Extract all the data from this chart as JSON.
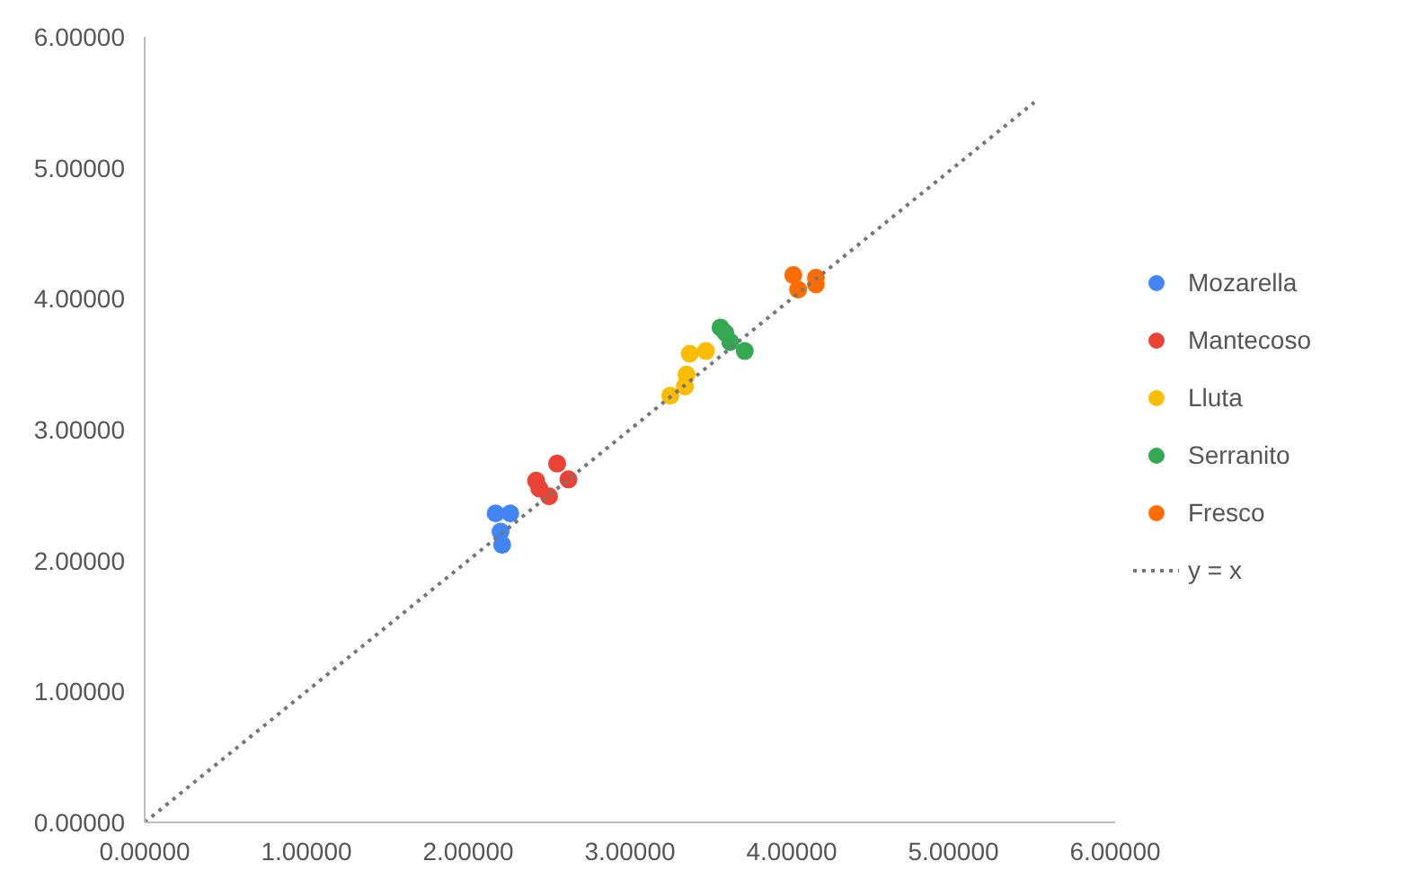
{
  "chart_data": {
    "type": "scatter",
    "marker": "circle",
    "grid": false,
    "legend": "right",
    "xlim": [
      0,
      6
    ],
    "ylim": [
      0,
      6
    ],
    "xticks": [
      {
        "value": 0,
        "label": "0.00000"
      },
      {
        "value": 1,
        "label": "1.00000"
      },
      {
        "value": 2,
        "label": "2.00000"
      },
      {
        "value": 3,
        "label": "3.00000"
      },
      {
        "value": 4,
        "label": "4.00000"
      },
      {
        "value": 5,
        "label": "5.00000"
      },
      {
        "value": 6,
        "label": "6.00000"
      }
    ],
    "yticks": [
      {
        "value": 0,
        "label": "0.00000"
      },
      {
        "value": 1,
        "label": "1.00000"
      },
      {
        "value": 2,
        "label": "2.00000"
      },
      {
        "value": 3,
        "label": "3.00000"
      },
      {
        "value": 4,
        "label": "4.00000"
      },
      {
        "value": 5,
        "label": "5.00000"
      },
      {
        "value": 6,
        "label": "6.00000"
      }
    ],
    "series": [
      {
        "name": "Mozarella",
        "color": "#4285f4",
        "x": [
          2.17,
          2.26,
          2.2,
          2.21
        ],
        "values": [
          2.36,
          2.36,
          2.22,
          2.12
        ]
      },
      {
        "name": "Mantecoso",
        "color": "#ea4335",
        "x": [
          2.42,
          2.44,
          2.5,
          2.55,
          2.62
        ],
        "values": [
          2.61,
          2.55,
          2.49,
          2.74,
          2.62
        ]
      },
      {
        "name": "Lluta",
        "color": "#fbbc04",
        "x": [
          3.25,
          3.34,
          3.35,
          3.37,
          3.47
        ],
        "values": [
          3.26,
          3.33,
          3.42,
          3.58,
          3.6
        ]
      },
      {
        "name": "Serranito",
        "color": "#34a853",
        "x": [
          3.56,
          3.59,
          3.62,
          3.71
        ],
        "values": [
          3.78,
          3.74,
          3.67,
          3.6
        ]
      },
      {
        "name": "Fresco",
        "color": "#ff6d01",
        "x": [
          4.01,
          4.04,
          4.15,
          4.15
        ],
        "values": [
          4.18,
          4.07,
          4.16,
          4.11
        ]
      },
      {
        "name": "y = x",
        "type": "line",
        "line_style": "dotted",
        "marker": "none",
        "color": "#757575",
        "x": [
          0,
          5.5
        ],
        "values": [
          0,
          5.5
        ]
      }
    ]
  }
}
